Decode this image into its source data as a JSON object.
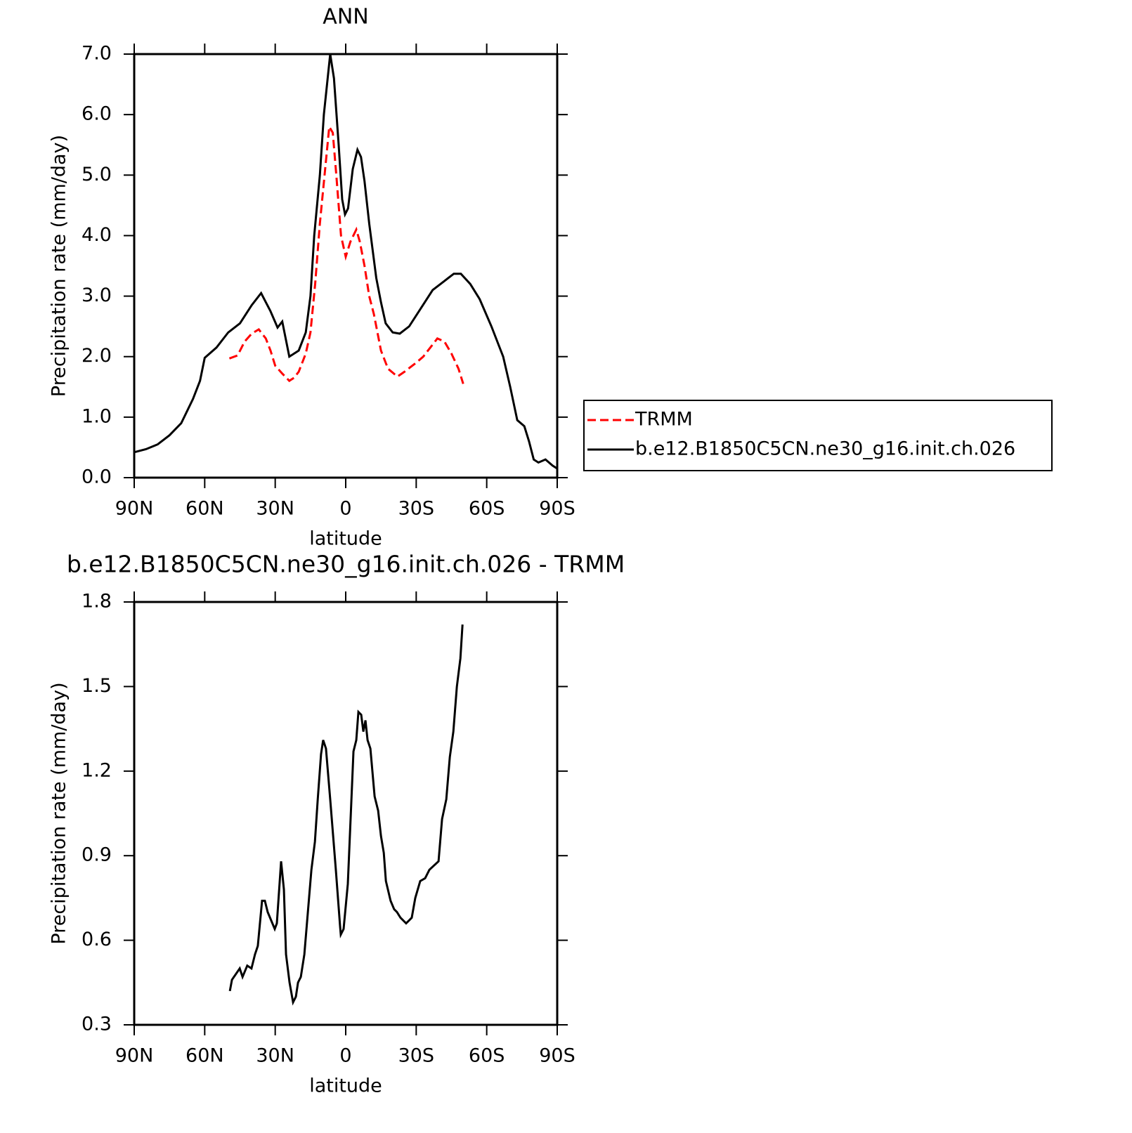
{
  "chart_data": [
    {
      "type": "line",
      "title": "ANN",
      "x_label": "latitude",
      "y_label": "Precipitation rate (mm/day)",
      "xlim": [
        90,
        -90
      ],
      "xticks": [
        {
          "value": 90,
          "label": "90N"
        },
        {
          "value": 60,
          "label": "60N"
        },
        {
          "value": 30,
          "label": "30N"
        },
        0,
        {
          "value": -30,
          "label": "30S"
        },
        {
          "value": -60,
          "label": "60S"
        },
        {
          "value": -90,
          "label": "90S"
        }
      ],
      "ylim": [
        0,
        7
      ],
      "yticks": [
        {
          "value": 0,
          "label": "0.0"
        },
        {
          "value": 1,
          "label": "1.0"
        },
        {
          "value": 2,
          "label": "2.0"
        },
        {
          "value": 3,
          "label": "3.0"
        },
        {
          "value": 4,
          "label": "4.0"
        },
        {
          "value": 5,
          "label": "5.0"
        },
        {
          "value": 6,
          "label": "6.0"
        },
        {
          "value": 7,
          "label": "7.0"
        }
      ],
      "legend": "right",
      "series": [
        {
          "name": "TRMM",
          "color": "#ff0000",
          "line_style": "dashed",
          "x": [
            49.5,
            46,
            43,
            40,
            37,
            34,
            32,
            30,
            27,
            24,
            22,
            20,
            17,
            15,
            13,
            11,
            9,
            7,
            5.5,
            4,
            2,
            0,
            -2,
            -4.5,
            -6,
            -8,
            -10,
            -12,
            -15,
            -18,
            -22,
            -25,
            -30,
            -33,
            -36,
            -39,
            -42,
            -45,
            -48,
            -50
          ],
          "values": [
            1.97,
            2.02,
            2.25,
            2.38,
            2.45,
            2.3,
            2.1,
            1.85,
            1.72,
            1.6,
            1.65,
            1.75,
            2.05,
            2.4,
            3.2,
            4.2,
            5.0,
            5.8,
            5.7,
            5.0,
            4.0,
            3.65,
            3.9,
            4.1,
            3.9,
            3.5,
            3.0,
            2.7,
            2.1,
            1.8,
            1.67,
            1.75,
            1.9,
            2.0,
            2.15,
            2.3,
            2.25,
            2.05,
            1.8,
            1.55
          ]
        },
        {
          "name": "b.e12.B1850C5CN.ne30_g16.init.ch.026",
          "color": "#000000",
          "line_style": "solid",
          "x": [
            90,
            85,
            80,
            75,
            70,
            65,
            62,
            60,
            55,
            50,
            45,
            40,
            36,
            32,
            29,
            27,
            24,
            20,
            17,
            15,
            13.4,
            11,
            9.3,
            6.6,
            5,
            3,
            1.5,
            0.3,
            -1,
            -3,
            -5,
            -6.5,
            -8,
            -10,
            -13,
            -15,
            -17,
            -20,
            -23,
            -27,
            -32,
            -37,
            -42,
            -46,
            -49,
            -53,
            -57,
            -62,
            -65,
            -67,
            -70,
            -73,
            -76,
            -78,
            -80,
            -82,
            -85,
            -88,
            -90
          ],
          "values": [
            0.42,
            0.47,
            0.55,
            0.7,
            0.9,
            1.3,
            1.6,
            1.98,
            2.15,
            2.4,
            2.55,
            2.85,
            3.05,
            2.75,
            2.48,
            2.58,
            2.0,
            2.1,
            2.4,
            3.0,
            4.0,
            5.0,
            6.0,
            7.0,
            6.6,
            5.5,
            4.6,
            4.35,
            4.45,
            5.1,
            5.42,
            5.3,
            4.9,
            4.2,
            3.3,
            2.9,
            2.55,
            2.4,
            2.38,
            2.5,
            2.8,
            3.1,
            3.25,
            3.37,
            3.37,
            3.2,
            2.95,
            2.5,
            2.2,
            2.0,
            1.5,
            0.95,
            0.85,
            0.6,
            0.3,
            0.25,
            0.3,
            0.2,
            0.15
          ]
        }
      ]
    },
    {
      "type": "line",
      "title": "b.e12.B1850C5CN.ne30_g16.init.ch.026 - TRMM",
      "x_label": "latitude",
      "y_label": "Precipitation rate (mm/day)",
      "xlim": [
        90,
        -90
      ],
      "xticks": [
        {
          "value": 90,
          "label": "90N"
        },
        {
          "value": 60,
          "label": "60N"
        },
        {
          "value": 30,
          "label": "30N"
        },
        0,
        {
          "value": -30,
          "label": "30S"
        },
        {
          "value": -60,
          "label": "60S"
        },
        {
          "value": -90,
          "label": "90S"
        }
      ],
      "ylim": [
        0.3,
        1.8
      ],
      "yticks": [
        0.3,
        0.6,
        0.9,
        1.2,
        1.5,
        1.8
      ],
      "series": [
        {
          "color": "#000000",
          "line_style": "solid",
          "x": [
            49.3,
            48.4,
            45.1,
            43.9,
            41.9,
            40.1,
            38.6,
            37.4,
            35.6,
            34.4,
            33.2,
            31.7,
            30.2,
            29.3,
            27.5,
            26.3,
            25.4,
            23.9,
            22.4,
            21.2,
            20.3,
            19.1,
            17.6,
            16.1,
            14.6,
            13.1,
            11.9,
            10.5,
            9.6,
            8.4,
            6.6,
            4.2,
            2.4,
            2.1,
            0.9,
            -0.9,
            -3.3,
            -4.5,
            -5.4,
            -6.6,
            -7.5,
            -8.4,
            -9.3,
            -10.5,
            -12.3,
            -13.8,
            -15,
            -16.2,
            -17.1,
            -19.1,
            -20.6,
            -21.8,
            -23.3,
            -25.7,
            -26.9,
            -28.1,
            -29.6,
            -31.7,
            -33.8,
            -35.6,
            -39.5,
            -41,
            -42.8,
            -44.3,
            -45.8,
            -47.3,
            -48.8,
            -49.7
          ],
          "values": [
            0.42,
            0.46,
            0.5,
            0.47,
            0.51,
            0.5,
            0.55,
            0.58,
            0.74,
            0.74,
            0.7,
            0.67,
            0.64,
            0.66,
            0.88,
            0.78,
            0.55,
            0.45,
            0.38,
            0.4,
            0.45,
            0.47,
            0.55,
            0.7,
            0.85,
            0.95,
            1.1,
            1.26,
            1.31,
            1.28,
            1.1,
            0.85,
            0.65,
            0.62,
            0.64,
            0.8,
            1.27,
            1.31,
            1.41,
            1.4,
            1.34,
            1.38,
            1.31,
            1.28,
            1.11,
            1.06,
            0.97,
            0.91,
            0.81,
            0.74,
            0.71,
            0.7,
            0.68,
            0.66,
            0.67,
            0.68,
            0.75,
            0.81,
            0.82,
            0.85,
            0.88,
            1.03,
            1.1,
            1.25,
            1.34,
            1.5,
            1.6,
            1.72
          ]
        }
      ]
    }
  ]
}
